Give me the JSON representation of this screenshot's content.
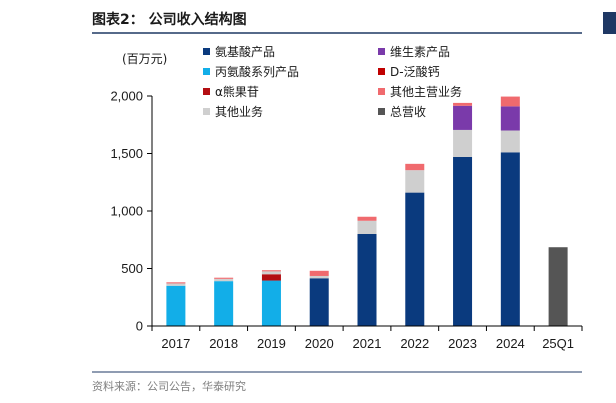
{
  "chart_data": {
    "type": "bar",
    "stacked": true,
    "title": "图表2：  公司收入结构图",
    "unit_label": "(百万元)",
    "source": "资料来源：公司公告，华泰研究",
    "categories": [
      "2017",
      "2018",
      "2019",
      "2020",
      "2021",
      "2022",
      "2023",
      "2024",
      "25Q1"
    ],
    "ylim": [
      0,
      2000
    ],
    "yticks": [
      0,
      500,
      1000,
      1500,
      2000
    ],
    "ytick_labels": [
      "0",
      "500",
      "1,000",
      "1,500",
      "2,000"
    ],
    "series": [
      {
        "name": "氨基酸产品",
        "color": "#0a3a7e",
        "values": [
          0,
          0,
          0,
          415,
          800,
          1160,
          1470,
          1510,
          0
        ]
      },
      {
        "name": "丙氨酸系列产品",
        "color": "#12aee8",
        "values": [
          350,
          390,
          395,
          0,
          0,
          0,
          0,
          0,
          0
        ]
      },
      {
        "name": "α熊果苷",
        "color": "#b30e12",
        "values": [
          0,
          0,
          55,
          0,
          0,
          0,
          0,
          0,
          0
        ]
      },
      {
        "name": "其他业务",
        "color": "#cfcfcf",
        "values": [
          20,
          20,
          25,
          20,
          115,
          195,
          235,
          190,
          0
        ]
      },
      {
        "name": "维生素产品",
        "color": "#7a3aaa",
        "values": [
          0,
          0,
          0,
          0,
          0,
          0,
          210,
          210,
          0
        ]
      },
      {
        "name": "D-泛酸钙",
        "color": "#c00000",
        "values": [
          0,
          0,
          0,
          0,
          0,
          0,
          0,
          0,
          0
        ]
      },
      {
        "name": "其他主营业务",
        "color": "#f06a6e",
        "values": [
          10,
          10,
          10,
          45,
          35,
          55,
          25,
          85,
          0
        ]
      },
      {
        "name": "总营收",
        "color": "#555555",
        "values": [
          0,
          0,
          0,
          0,
          0,
          0,
          0,
          0,
          685
        ]
      }
    ],
    "legend_order": [
      "氨基酸产品",
      "维生素产品",
      "丙氨酸系列产品",
      "D-泛酸钙",
      "α熊果苷",
      "其他主营业务",
      "其他业务",
      "总营收"
    ]
  }
}
